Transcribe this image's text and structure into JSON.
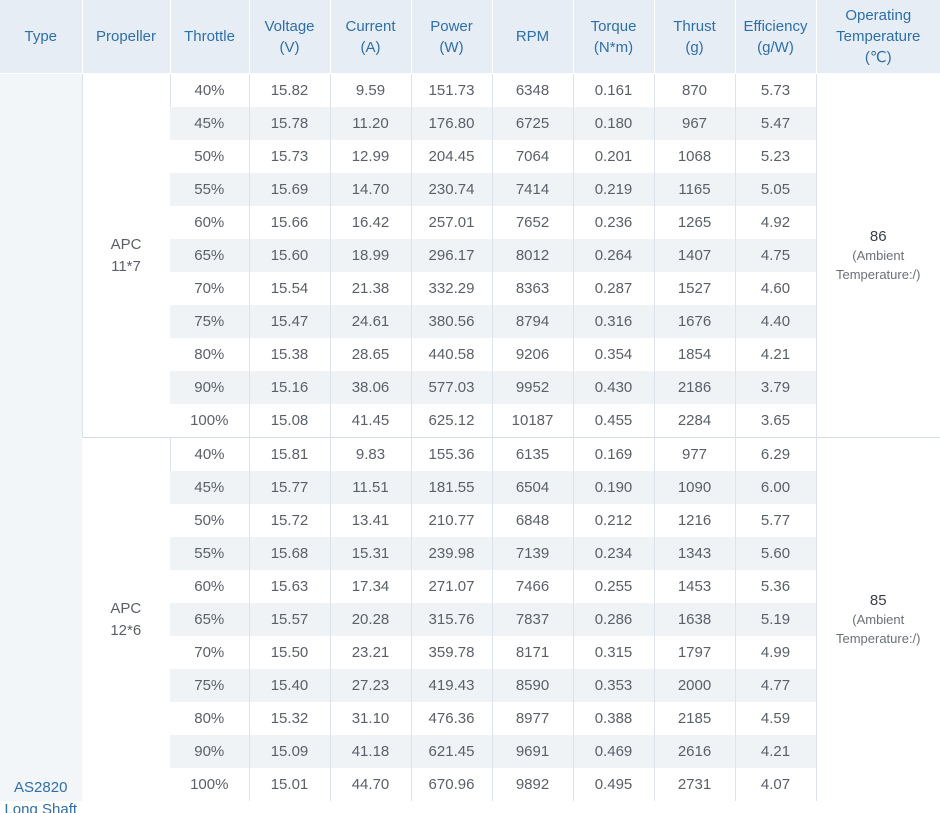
{
  "headers": {
    "type": "Type",
    "propeller": "Propeller",
    "throttle": "Throttle",
    "voltage": [
      "Voltage",
      "(V)"
    ],
    "current": [
      "Current",
      "(A)"
    ],
    "power": [
      "Power",
      "(W)"
    ],
    "rpm": "RPM",
    "torque": [
      "Torque",
      "(N*m)"
    ],
    "thrust": [
      "Thrust",
      "(g)"
    ],
    "efficiency": [
      "Efficiency",
      "(g/W)"
    ],
    "temperature": [
      "Operating",
      "Temperature",
      "(℃)"
    ]
  },
  "type": [
    "AS2820",
    "Long Shaft"
  ],
  "groups": [
    {
      "propeller": [
        "APC",
        "11*7"
      ],
      "temperature": "86",
      "temperature_note": [
        "(Ambient",
        "Temperature:/)"
      ],
      "rows": [
        [
          "40%",
          "15.82",
          "9.59",
          "151.73",
          "6348",
          "0.161",
          "870",
          "5.73"
        ],
        [
          "45%",
          "15.78",
          "11.20",
          "176.80",
          "6725",
          "0.180",
          "967",
          "5.47"
        ],
        [
          "50%",
          "15.73",
          "12.99",
          "204.45",
          "7064",
          "0.201",
          "1068",
          "5.23"
        ],
        [
          "55%",
          "15.69",
          "14.70",
          "230.74",
          "7414",
          "0.219",
          "1165",
          "5.05"
        ],
        [
          "60%",
          "15.66",
          "16.42",
          "257.01",
          "7652",
          "0.236",
          "1265",
          "4.92"
        ],
        [
          "65%",
          "15.60",
          "18.99",
          "296.17",
          "8012",
          "0.264",
          "1407",
          "4.75"
        ],
        [
          "70%",
          "15.54",
          "21.38",
          "332.29",
          "8363",
          "0.287",
          "1527",
          "4.60"
        ],
        [
          "75%",
          "15.47",
          "24.61",
          "380.56",
          "8794",
          "0.316",
          "1676",
          "4.40"
        ],
        [
          "80%",
          "15.38",
          "28.65",
          "440.58",
          "9206",
          "0.354",
          "1854",
          "4.21"
        ],
        [
          "90%",
          "15.16",
          "38.06",
          "577.03",
          "9952",
          "0.430",
          "2186",
          "3.79"
        ],
        [
          "100%",
          "15.08",
          "41.45",
          "625.12",
          "10187",
          "0.455",
          "2284",
          "3.65"
        ]
      ]
    },
    {
      "propeller": [
        "APC",
        "12*6"
      ],
      "temperature": "85",
      "temperature_note": [
        "(Ambient",
        "Temperature:/)"
      ],
      "rows": [
        [
          "40%",
          "15.81",
          "9.83",
          "155.36",
          "6135",
          "0.169",
          "977",
          "6.29"
        ],
        [
          "45%",
          "15.77",
          "11.51",
          "181.55",
          "6504",
          "0.190",
          "1090",
          "6.00"
        ],
        [
          "50%",
          "15.72",
          "13.41",
          "210.77",
          "6848",
          "0.212",
          "1216",
          "5.77"
        ],
        [
          "55%",
          "15.68",
          "15.31",
          "239.98",
          "7139",
          "0.234",
          "1343",
          "5.60"
        ],
        [
          "60%",
          "15.63",
          "17.34",
          "271.07",
          "7466",
          "0.255",
          "1453",
          "5.36"
        ],
        [
          "65%",
          "15.57",
          "20.28",
          "315.76",
          "7837",
          "0.286",
          "1638",
          "5.19"
        ],
        [
          "70%",
          "15.50",
          "23.21",
          "359.78",
          "8171",
          "0.315",
          "1797",
          "4.99"
        ],
        [
          "75%",
          "15.40",
          "27.23",
          "419.43",
          "8590",
          "0.353",
          "2000",
          "4.77"
        ],
        [
          "80%",
          "15.32",
          "31.10",
          "476.36",
          "8977",
          "0.388",
          "2185",
          "4.59"
        ],
        [
          "90%",
          "15.09",
          "41.18",
          "621.45",
          "9691",
          "0.469",
          "2616",
          "4.21"
        ],
        [
          "100%",
          "15.01",
          "44.70",
          "670.96",
          "9892",
          "0.495",
          "2731",
          "4.07"
        ]
      ]
    }
  ]
}
